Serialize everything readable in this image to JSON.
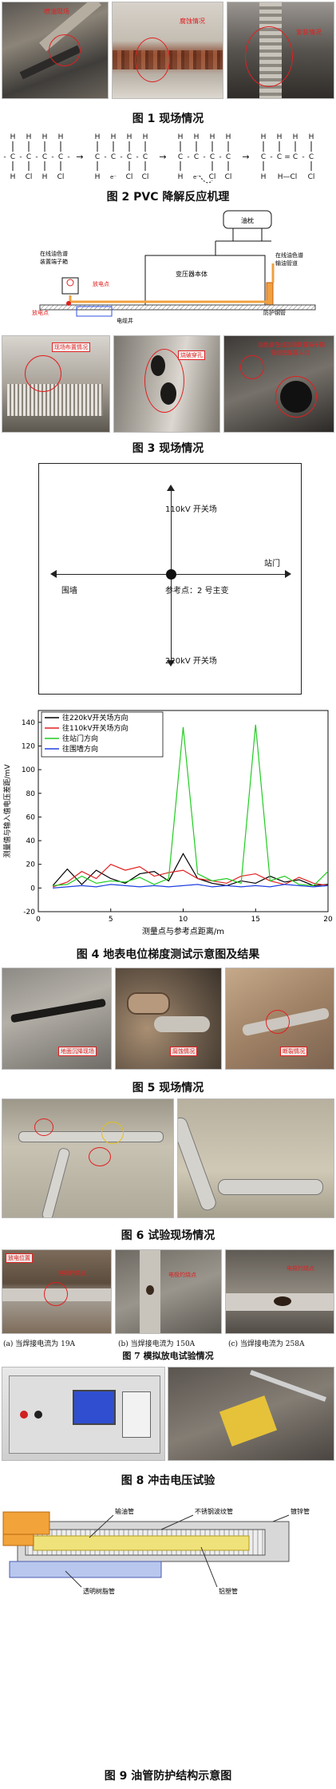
{
  "fig1": {
    "caption": "图 1  现场情况",
    "labels": [
      "喷油现场",
      "腐蚀情况",
      "安装情况"
    ]
  },
  "fig2": {
    "caption": "图 2  PVC 降解反应机理",
    "H": "H",
    "C": "C",
    "Cl": "Cl",
    "HCl": "H—Cl"
  },
  "fig3": {
    "caption": "图 3  现场情况",
    "oil_tank": "油枕",
    "transformer_body": "变压器本体",
    "online_device": "在线油色谱\n装置端子箱",
    "online_device_l1": "在线油色谱",
    "online_device_l2": "装置端子箱",
    "right_l1": "在线油色谱",
    "right_l2": "输油管道",
    "discharge_point": "放电点",
    "discharge_point_left": "放电点",
    "cable_trench": "电缆井",
    "protective_pipe": "防护钢管",
    "photo_labels": [
      "现场布置情况",
      "烧破穿孔",
      "油色谱在线监测装置端子箱\n管缆底部接入口"
    ],
    "photo_label3_l1": "油色谱在线监测装置端子箱",
    "photo_label3_l2": "管缆底部接入口"
  },
  "fig4": {
    "caption": "图 4  地表电位梯度测试示意图及结果",
    "north": "110kV 开关场",
    "south": "220kV 开关场",
    "west": "围墙",
    "east": "站门",
    "center": "参考点：2 号主变",
    "chart_data": {
      "type": "line",
      "xlabel": "测量点与参考点距离/m",
      "ylabel": "测量值与输入值电压差距/mV",
      "xlim": [
        0,
        20
      ],
      "ylim": [
        -20,
        150
      ],
      "xticks": [
        0,
        5,
        10,
        15,
        20
      ],
      "yticks": [
        -20,
        0,
        20,
        40,
        60,
        80,
        100,
        120,
        140
      ],
      "legend_position": "top-left",
      "x": [
        1,
        2,
        3,
        4,
        5,
        6,
        7,
        8,
        9,
        10,
        11,
        12,
        13,
        14,
        15,
        16,
        17,
        18,
        19,
        20
      ],
      "series": [
        {
          "name": "往220kV开关场方向",
          "color": "#000000",
          "values": [
            2,
            16,
            3,
            15,
            8,
            4,
            12,
            14,
            6,
            29,
            8,
            4,
            2,
            6,
            4,
            10,
            5,
            7,
            2,
            3
          ]
        },
        {
          "name": "往110kV开关场方向",
          "color": "#e02020",
          "values": [
            1,
            5,
            14,
            8,
            20,
            15,
            18,
            10,
            13,
            15,
            8,
            6,
            4,
            10,
            12,
            6,
            3,
            9,
            4,
            2
          ]
        },
        {
          "name": "往站门方向",
          "color": "#22cc22",
          "values": [
            2,
            3,
            10,
            4,
            6,
            5,
            9,
            3,
            8,
            136,
            12,
            6,
            8,
            4,
            138,
            6,
            10,
            3,
            2,
            14
          ]
        },
        {
          "name": "往围墙方向",
          "color": "#2040e0",
          "values": [
            0,
            1,
            2,
            1,
            3,
            2,
            1,
            2,
            1,
            2,
            3,
            1,
            2,
            1,
            2,
            1,
            3,
            2,
            1,
            2
          ]
        }
      ]
    }
  },
  "fig5": {
    "caption": "图 5  现场情况",
    "labels": [
      "地面沉降现场",
      "腐蚀情况",
      "断裂情况"
    ]
  },
  "fig6": {
    "caption": "图 6  试验现场情况"
  },
  "fig7": {
    "caption": "图 7  模拟放电试验情况",
    "labels": [
      "放电位置",
      "电极灼烧点",
      "电极灼烧点",
      "电极灼烧点"
    ],
    "subcaptions": [
      "(a) 当焊接电流为 19A",
      "(b) 当焊接电流为 150A",
      "(c) 当焊接电流为 258A"
    ]
  },
  "fig8": {
    "caption": "图 8  冲击电压试验"
  },
  "fig9": {
    "caption": "图 9  油管防护结构示意图",
    "labels": [
      "输油管",
      "不锈钢波纹管",
      "镀锌管",
      "透明树脂管",
      "铝塑管"
    ]
  }
}
